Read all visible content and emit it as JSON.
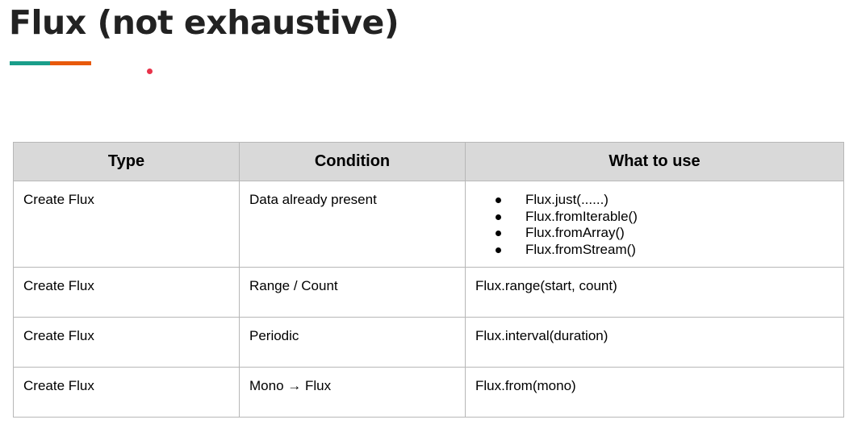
{
  "title": "Flux (not exhaustive)",
  "colors": {
    "accent_teal": "#1a9e8a",
    "accent_orange": "#e8590c",
    "dot_red": "#e8334a",
    "header_bg": "#d9d9d9",
    "border": "#b7b7b7"
  },
  "table": {
    "headers": [
      "Type",
      "Condition",
      "What to use"
    ],
    "rows": [
      {
        "type": "Create Flux",
        "condition": "Data already present",
        "uses": [
          "Flux.just(......)",
          "Flux.fromIterable()",
          "Flux.fromArray()",
          "Flux.fromStream()"
        ]
      },
      {
        "type": "Create Flux",
        "condition": "Range / Count",
        "use": "Flux.range(start, count)"
      },
      {
        "type": "Create Flux",
        "condition": "Periodic",
        "use": "Flux.interval(duration)"
      },
      {
        "type": "Create Flux",
        "condition": "Mono → Flux",
        "use": "Flux.from(mono)"
      }
    ]
  }
}
